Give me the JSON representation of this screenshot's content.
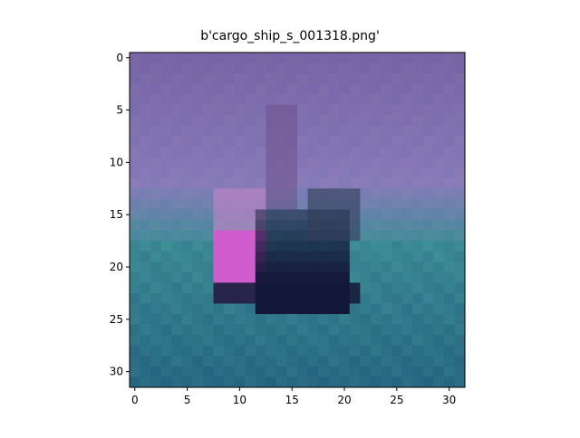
{
  "figure": {
    "title": "b'cargo_ship_s_001318.png'"
  },
  "axes": {
    "x_ticks": [
      "0",
      "5",
      "10",
      "15",
      "20",
      "25",
      "30"
    ],
    "y_ticks": [
      "0",
      "5",
      "10",
      "15",
      "20",
      "25",
      "30"
    ]
  },
  "image": {
    "description_colors": {
      "sky_top": "#7a66a6",
      "sky_mid": "#8a7cb8",
      "water": "#3f8f98",
      "water_dark": "#1f5a78",
      "hull_dark": "#141838",
      "bow_pink": "#d85ad0"
    }
  }
}
